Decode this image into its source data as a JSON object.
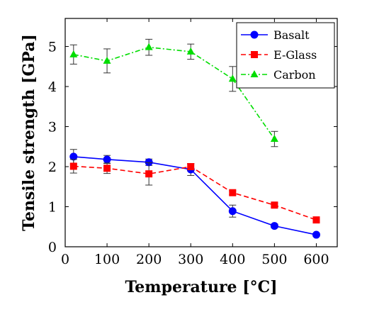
{
  "chart_data": {
    "type": "line",
    "xlabel": "Temperature [°C]",
    "ylabel": "Tensile strength [GPa]",
    "xlim": [
      0,
      650
    ],
    "ylim": [
      0,
      5.7
    ],
    "xticks": [
      0,
      100,
      200,
      300,
      400,
      500,
      600
    ],
    "yticks": [
      0,
      1,
      2,
      3,
      4,
      5
    ],
    "legend_position": "top-right",
    "series": [
      {
        "name": "Basalt",
        "color": "#0000ff",
        "marker": "circle",
        "line_style": "solid",
        "x": [
          20,
          100,
          200,
          300,
          400,
          500,
          600
        ],
        "y": [
          2.25,
          2.18,
          2.11,
          1.93,
          0.89,
          0.52,
          0.3
        ],
        "err": [
          0.18,
          0.1,
          0.08,
          0.15,
          0.15,
          0.05,
          0.04
        ]
      },
      {
        "name": "E-Glass",
        "color": "#ff0000",
        "marker": "square",
        "line_style": "dashed",
        "x": [
          20,
          100,
          200,
          300,
          400,
          500,
          600
        ],
        "y": [
          2.01,
          1.96,
          1.82,
          2.0,
          1.35,
          1.04,
          0.67
        ],
        "err": [
          0.17,
          0.13,
          0.28,
          0.07,
          0.05,
          0.05,
          0.03
        ]
      },
      {
        "name": "Carbon",
        "color": "#00dd00",
        "marker": "triangle",
        "line_style": "dashdot",
        "x": [
          20,
          100,
          200,
          300,
          400,
          500
        ],
        "y": [
          4.8,
          4.64,
          4.98,
          4.87,
          4.19,
          2.69
        ],
        "err": [
          0.24,
          0.3,
          0.2,
          0.19,
          0.31,
          0.19
        ]
      }
    ]
  }
}
